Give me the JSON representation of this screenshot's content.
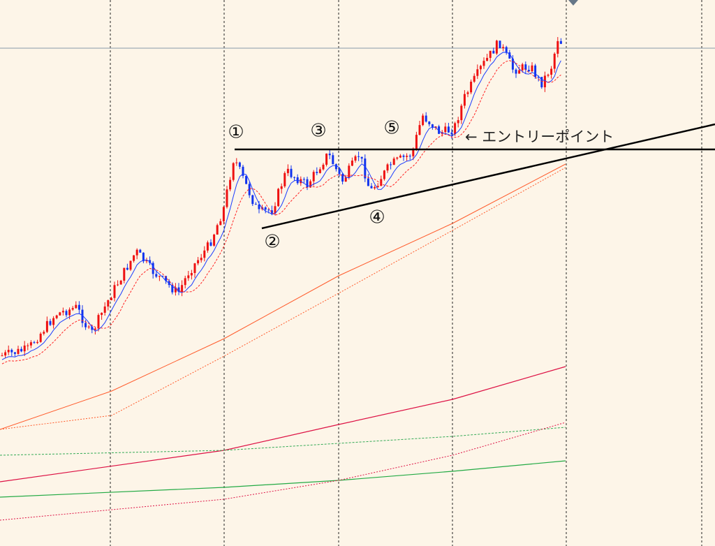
{
  "annotations": {
    "points": [
      "①",
      "②",
      "③",
      "④",
      "⑤"
    ],
    "entry_point": "← エントリーポイント"
  }
}
